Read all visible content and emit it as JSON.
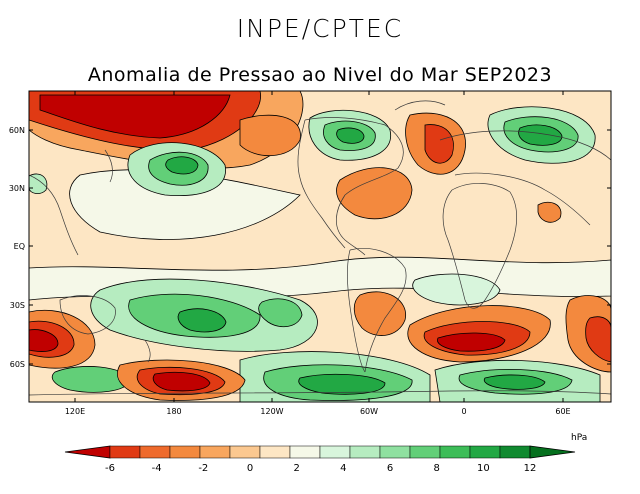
{
  "header": {
    "organization": "INPE/CPTEC",
    "title": "Anomalia de Pressao ao Nivel do Mar SEP2023"
  },
  "map": {
    "lat_labels": [
      "60N",
      "30N",
      "EQ",
      "30S",
      "60S"
    ],
    "lon_labels": [
      "120E",
      "180",
      "120W",
      "60W",
      "0",
      "60E"
    ]
  },
  "colorbar": {
    "unit": "hPa",
    "ticks": [
      "-6",
      "-4",
      "-2",
      "0",
      "2",
      "4",
      "6",
      "8",
      "10",
      "12"
    ],
    "bins": [
      {
        "range": "< -6",
        "color": "#c00000"
      },
      {
        "range": "-6 to -5",
        "color": "#e03a14"
      },
      {
        "range": "-5 to -4",
        "color": "#ee6a2c"
      },
      {
        "range": "-4 to -3",
        "color": "#f3893e"
      },
      {
        "range": "-3 to -2",
        "color": "#f8a65e"
      },
      {
        "range": "-2 to -1",
        "color": "#fbc890"
      },
      {
        "range": "-1 to 0",
        "color": "#fde6c4"
      },
      {
        "range": "0 to 1",
        "color": "#f5f8e8"
      },
      {
        "range": "1 to 2",
        "color": "#d8f5dc"
      },
      {
        "range": "2 to 3",
        "color": "#b6ecc0"
      },
      {
        "range": "3 to 4",
        "color": "#8fe0a0"
      },
      {
        "range": "4 to 5",
        "color": "#62cf78"
      },
      {
        "range": "5 to 6",
        "color": "#3dbd58"
      },
      {
        "range": "6 to 7",
        "color": "#22a844"
      },
      {
        "range": "7 to 8",
        "color": "#108a30"
      },
      {
        "range": "> 8",
        "color": "#05701e"
      }
    ]
  },
  "colors": {
    "ocean_background": "#fde6c4",
    "coastline": "#3a3a3a",
    "contour": "#000000"
  }
}
